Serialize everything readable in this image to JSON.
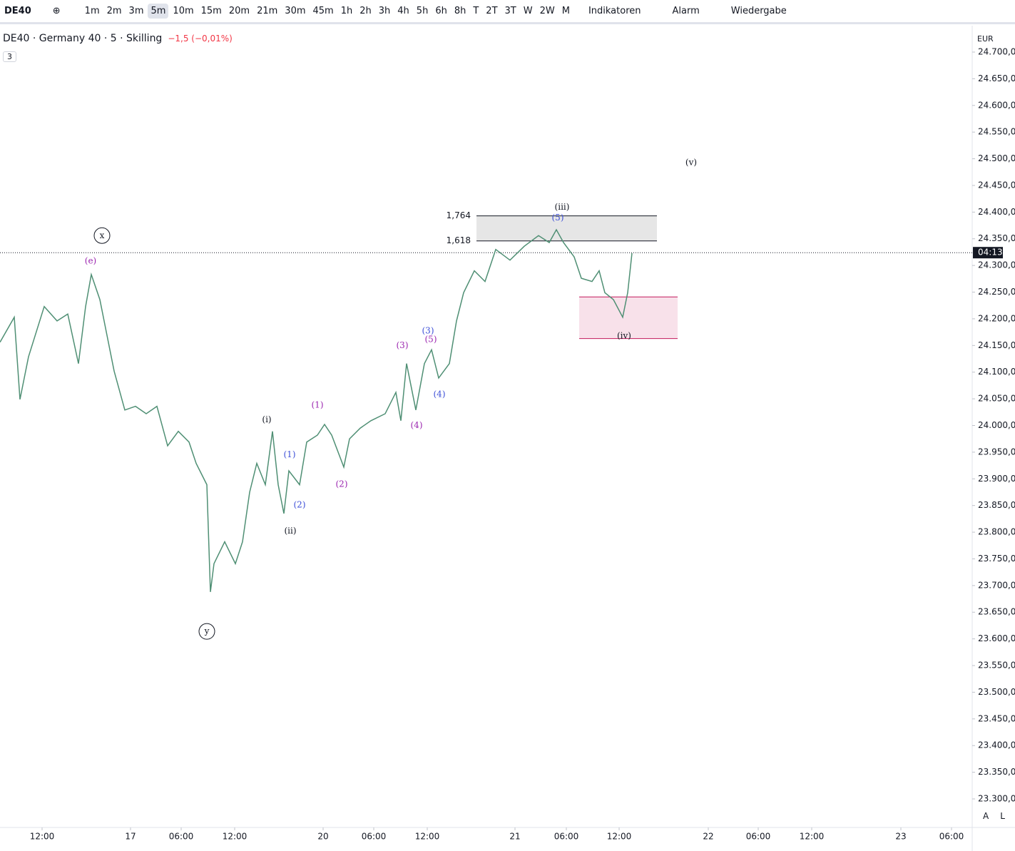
{
  "toolbar": {
    "symbol": "DE40",
    "intervals": [
      "1m",
      "2m",
      "3m",
      "5m",
      "10m",
      "15m",
      "20m",
      "21m",
      "30m",
      "45m",
      "1h",
      "2h",
      "3h",
      "4h",
      "5h",
      "6h",
      "8h",
      "T",
      "2T",
      "3T",
      "W",
      "2W",
      "M"
    ],
    "active_interval": "5m",
    "indicators": "Indikatoren",
    "alarm": "Alarm",
    "replay": "Wiedergabe"
  },
  "legend": {
    "title": "DE40 · Germany 40 · 5 · Skilling",
    "change": "−1,5 (−0,01%)",
    "badge": "3"
  },
  "price_axis": {
    "currency": "EUR",
    "buttons": [
      "A",
      "L"
    ]
  },
  "chart_data": {
    "type": "line",
    "series": [
      {
        "name": "DE40",
        "color": "#4f8f74",
        "x": [
          0,
          20,
          28,
          40,
          62,
          80,
          95,
          110,
          120,
          128,
          140,
          150,
          160,
          175,
          190,
          205,
          220,
          235,
          250,
          265,
          275,
          290,
          295,
          300,
          315,
          330,
          340,
          350,
          360,
          372,
          382,
          390,
          398,
          405,
          420,
          430,
          445,
          455,
          465,
          482,
          490,
          505,
          520,
          540,
          555,
          562,
          570,
          583,
          595,
          605,
          615,
          630,
          640,
          650,
          665,
          680,
          695,
          715,
          735,
          755,
          770,
          780,
          790,
          805,
          815,
          830,
          840,
          848,
          860,
          873,
          880,
          886
        ],
        "values": [
          24156,
          24203,
          24049,
          24129,
          24223,
          24196,
          24209,
          24116,
          24223,
          24283,
          24236,
          24169,
          24102,
          24029,
          24036,
          24022,
          24036,
          23962,
          23989,
          23969,
          23929,
          23889,
          23688,
          23741,
          23782,
          23741,
          23782,
          23875,
          23929,
          23889,
          23989,
          23889,
          23835,
          23915,
          23889,
          23969,
          23982,
          24002,
          23982,
          23922,
          23975,
          23995,
          24009,
          24022,
          24062,
          24009,
          24116,
          24029,
          24116,
          24142,
          24089,
          24116,
          24196,
          24249,
          24290,
          24270,
          24330,
          24310,
          24336,
          24356,
          24343,
          24367,
          24343,
          24316,
          24276,
          24270,
          24290,
          24249,
          24236,
          24203,
          24249,
          24323
        ]
      }
    ],
    "xlim": [
      0,
      1363
    ],
    "xticks": [
      {
        "value": 59,
        "label": "12:00"
      },
      {
        "value": 183,
        "label": "17"
      },
      {
        "value": 254,
        "label": "06:00"
      },
      {
        "value": 329,
        "label": "12:00"
      },
      {
        "value": 453,
        "label": "20"
      },
      {
        "value": 524,
        "label": "06:00"
      },
      {
        "value": 599,
        "label": "12:00"
      },
      {
        "value": 722,
        "label": "21"
      },
      {
        "value": 794,
        "label": "06:00"
      },
      {
        "value": 868,
        "label": "12:00"
      },
      {
        "value": 993,
        "label": "22"
      },
      {
        "value": 1063,
        "label": "06:00"
      },
      {
        "value": 1138,
        "label": "12:00"
      },
      {
        "value": 1263,
        "label": "23"
      },
      {
        "value": 1334,
        "label": "06:00"
      }
    ],
    "ylim": [
      23246.5,
      24746.8
    ],
    "yticks": [
      {
        "value": 23300,
        "label": "23.300,0"
      },
      {
        "value": 23350,
        "label": "23.350,0"
      },
      {
        "value": 23400,
        "label": "23.400,0"
      },
      {
        "value": 23450,
        "label": "23.450,0"
      },
      {
        "value": 23500,
        "label": "23.500,0"
      },
      {
        "value": 23550,
        "label": "23.550,0"
      },
      {
        "value": 23600,
        "label": "23.600,0"
      },
      {
        "value": 23650,
        "label": "23.650,0"
      },
      {
        "value": 23700,
        "label": "23.700,0"
      },
      {
        "value": 23750,
        "label": "23.750,0"
      },
      {
        "value": 23800,
        "label": "23.800,0"
      },
      {
        "value": 23850,
        "label": "23.850,0"
      },
      {
        "value": 23900,
        "label": "23.900,0"
      },
      {
        "value": 23950,
        "label": "23.950,0"
      },
      {
        "value": 24000,
        "label": "24.000,0"
      },
      {
        "value": 24050,
        "label": "24.050,0"
      },
      {
        "value": 24100,
        "label": "24.100,0"
      },
      {
        "value": 24150,
        "label": "24.150,0"
      },
      {
        "value": 24200,
        "label": "24.200,0"
      },
      {
        "value": 24250,
        "label": "24.250,0"
      },
      {
        "value": 24300,
        "label": "24.300,0"
      },
      {
        "value": 24350,
        "label": "24.350,0"
      },
      {
        "value": 24400,
        "label": "24.400,0"
      },
      {
        "value": 24450,
        "label": "24.450,0"
      },
      {
        "value": 24500,
        "label": "24.500,0"
      },
      {
        "value": 24550,
        "label": "24.550,0"
      },
      {
        "value": 24600,
        "label": "24.600,0"
      },
      {
        "value": 24650,
        "label": "24.650,0"
      },
      {
        "value": 24700,
        "label": "24.700,0"
      }
    ],
    "grid": false,
    "current_price": {
      "value": 24324,
      "label": "04:13"
    },
    "fib_box": {
      "x": [
        668,
        921
      ],
      "color": "#e6e6e6",
      "levels": [
        {
          "label": "1,764",
          "price": 24393
        },
        {
          "label": "1,618",
          "price": 24346
        }
      ]
    },
    "zone": {
      "x": [
        812,
        950
      ],
      "top": 24241,
      "bottom": 24163,
      "color": "#f8e1ea",
      "edge": "#c2185b"
    },
    "annotations": [
      {
        "text": "x",
        "x": 143,
        "y": 24356,
        "color": "#131722",
        "circled": true
      },
      {
        "text": "(e)",
        "x": 127,
        "y": 24308,
        "color": "#9c27b0",
        "circled": false
      },
      {
        "text": "y",
        "x": 290,
        "y": 23614,
        "color": "#131722",
        "circled": true
      },
      {
        "text": "(i)",
        "x": 374,
        "y": 24011,
        "color": "#131722",
        "circled": false
      },
      {
        "text": "(ii)",
        "x": 407,
        "y": 23802,
        "color": "#131722",
        "circled": false
      },
      {
        "text": "(iii)",
        "x": 788,
        "y": 24409,
        "color": "#131722",
        "circled": false
      },
      {
        "text": "(iv)",
        "x": 875,
        "y": 24168,
        "color": "#131722",
        "circled": false
      },
      {
        "text": "(v)",
        "x": 969,
        "y": 24493,
        "color": "#131722",
        "circled": false
      },
      {
        "text": "(1)",
        "x": 406,
        "y": 23945,
        "color": "#3f51d8",
        "circled": false
      },
      {
        "text": "(2)",
        "x": 420,
        "y": 23851,
        "color": "#3f51d8",
        "circled": false
      },
      {
        "text": "(3)",
        "x": 600,
        "y": 24177,
        "color": "#3f51d8",
        "circled": false
      },
      {
        "text": "(4)",
        "x": 616,
        "y": 24058,
        "color": "#3f51d8",
        "circled": false
      },
      {
        "text": "(5)",
        "x": 782,
        "y": 24389,
        "color": "#3f51d8",
        "circled": false
      },
      {
        "text": "(1)",
        "x": 445,
        "y": 24038,
        "color": "#9c27b0",
        "circled": false
      },
      {
        "text": "(2)",
        "x": 479,
        "y": 23890,
        "color": "#9c27b0",
        "circled": false
      },
      {
        "text": "(3)",
        "x": 564,
        "y": 24150,
        "color": "#9c27b0",
        "circled": false
      },
      {
        "text": "(4)",
        "x": 584,
        "y": 24000,
        "color": "#9c27b0",
        "circled": false
      },
      {
        "text": "(5)",
        "x": 604,
        "y": 24161,
        "color": "#9c27b0",
        "circled": false
      }
    ]
  }
}
